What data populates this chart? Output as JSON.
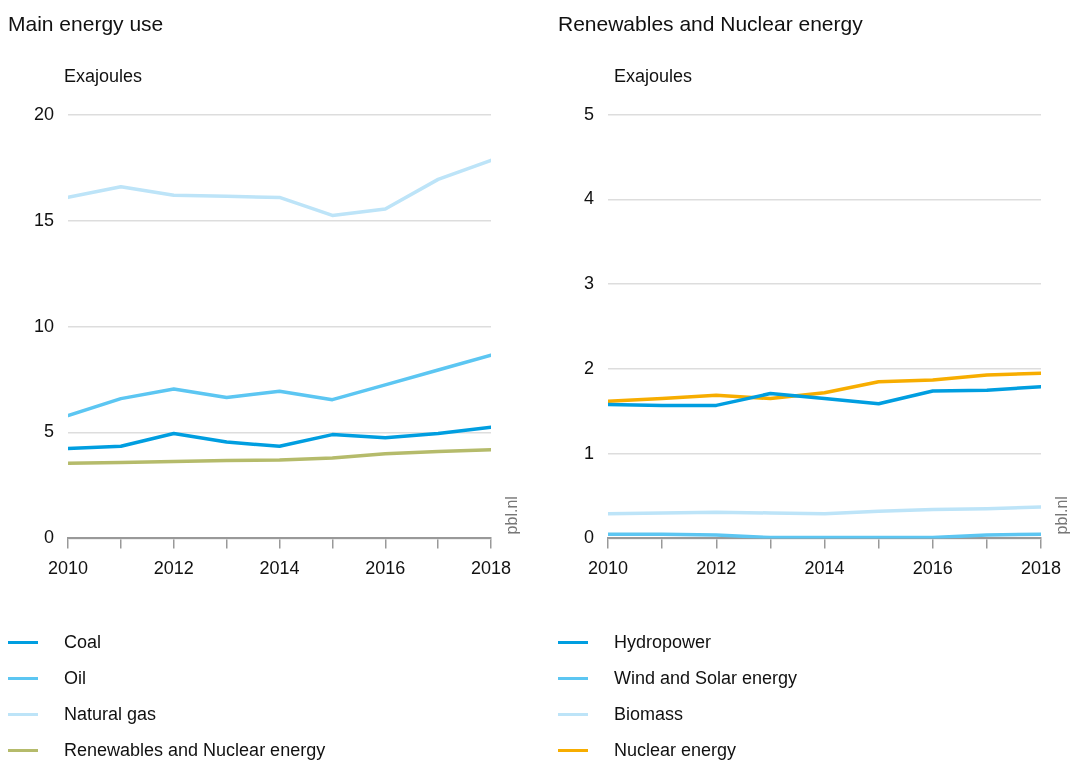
{
  "chart_data": [
    {
      "type": "line",
      "title": "Main energy use",
      "ylabel": "Exajoules",
      "x": [
        2010,
        2011,
        2012,
        2013,
        2014,
        2015,
        2016,
        2017,
        2018
      ],
      "series": [
        {
          "name": "Coal",
          "color": "#009ee0",
          "values": [
            4.25,
            4.35,
            4.95,
            4.55,
            4.35,
            4.9,
            4.75,
            4.95,
            5.25
          ]
        },
        {
          "name": "Oil",
          "color": "#5cc6f2",
          "values": [
            5.8,
            6.6,
            7.05,
            6.65,
            6.95,
            6.55,
            7.25,
            7.95,
            8.65
          ]
        },
        {
          "name": "Natural gas",
          "color": "#bde4f8",
          "values": [
            16.1,
            16.6,
            16.2,
            16.15,
            16.1,
            15.25,
            15.55,
            16.95,
            17.85
          ]
        },
        {
          "name": "Renewables and Nuclear energy",
          "color": "#b5bb6b",
          "values": [
            3.55,
            3.58,
            3.63,
            3.68,
            3.7,
            3.8,
            4.0,
            4.1,
            4.18
          ]
        }
      ],
      "xlim": [
        2010,
        2018
      ],
      "xticks": [
        2010,
        {
          "value": 2011,
          "label": null
        },
        2012,
        {
          "value": 2013,
          "label": null
        },
        2014,
        {
          "value": 2015,
          "label": null
        },
        2016,
        {
          "value": 2017,
          "label": null
        },
        2018
      ],
      "ylim": [
        0,
        20
      ],
      "yticks": [
        0,
        5,
        10,
        15,
        20
      ],
      "grid": "y",
      "legend": "bottom",
      "marker": "none",
      "line_style": "solid",
      "annotations": [
        "pbl.nl"
      ]
    },
    {
      "type": "line",
      "title": "Renewables and Nuclear energy",
      "ylabel": "Exajoules",
      "x": [
        2010,
        2011,
        2012,
        2013,
        2014,
        2015,
        2016,
        2017,
        2018
      ],
      "series": [
        {
          "name": "Hydropower",
          "color": "#009ee0",
          "values": [
            1.58,
            1.57,
            1.57,
            1.71,
            1.65,
            1.59,
            1.74,
            1.75,
            1.79
          ]
        },
        {
          "name": "Wind and Solar energy",
          "color": "#5cc6f2",
          "values": [
            0.05,
            0.05,
            0.04,
            0.01,
            0.01,
            0.01,
            0.01,
            0.04,
            0.05
          ]
        },
        {
          "name": "Biomass",
          "color": "#bde4f8",
          "values": [
            0.29,
            0.3,
            0.31,
            0.3,
            0.29,
            0.32,
            0.34,
            0.35,
            0.37
          ]
        },
        {
          "name": "Nuclear energy",
          "color": "#f7ad00",
          "values": [
            1.62,
            1.65,
            1.69,
            1.65,
            1.72,
            1.85,
            1.87,
            1.93,
            1.95
          ]
        }
      ],
      "xlim": [
        2010,
        2018
      ],
      "xticks": [
        2010,
        {
          "value": 2011,
          "label": null
        },
        2012,
        {
          "value": 2013,
          "label": null
        },
        2014,
        {
          "value": 2015,
          "label": null
        },
        2016,
        {
          "value": 2017,
          "label": null
        },
        2018
      ],
      "ylim": [
        0,
        5
      ],
      "yticks": [
        0,
        1,
        2,
        3,
        4,
        5
      ],
      "grid": "y",
      "legend": "bottom",
      "marker": "none",
      "line_style": "solid",
      "annotations": [
        "pbl.nl"
      ]
    }
  ]
}
